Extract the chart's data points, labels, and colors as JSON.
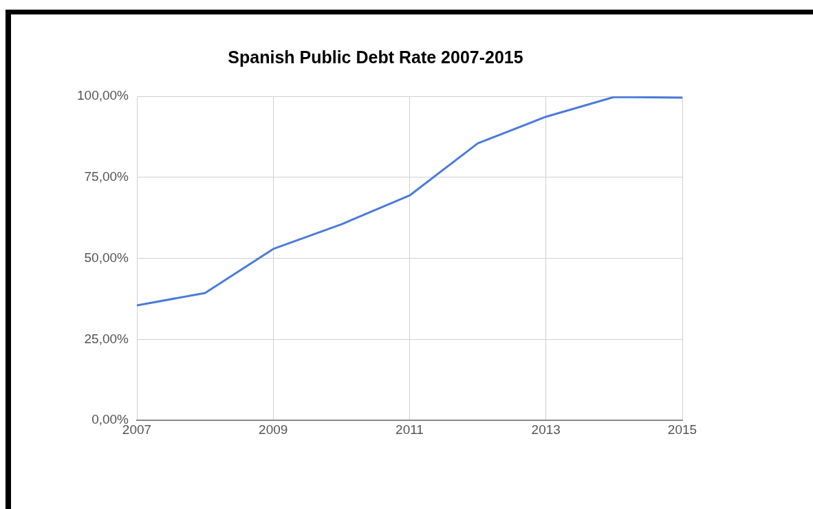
{
  "chart_data": {
    "type": "line",
    "title": "Spanish Public Debt Rate 2007-2015",
    "x": [
      2007,
      2008,
      2009,
      2010,
      2011,
      2012,
      2013,
      2014,
      2015
    ],
    "series": [
      {
        "color": "#4a7bd8",
        "values": [
          35.5,
          39.3,
          52.9,
          60.5,
          69.4,
          85.5,
          93.7,
          99.8,
          99.6
        ]
      }
    ],
    "xlim": [
      2007,
      2015
    ],
    "xticks": [
      2007,
      2009,
      2011,
      2013,
      2015
    ],
    "ylim": [
      0,
      100
    ],
    "yticks": [
      {
        "value": 0,
        "label": "0,00%"
      },
      {
        "value": 25,
        "label": "25,00%"
      },
      {
        "value": 50,
        "label": "50,00%"
      },
      {
        "value": 75,
        "label": "75,00%"
      },
      {
        "value": 100,
        "label": "100,00%"
      }
    ],
    "grid": true,
    "legend": false,
    "marker": "none",
    "line_style": "solid"
  }
}
